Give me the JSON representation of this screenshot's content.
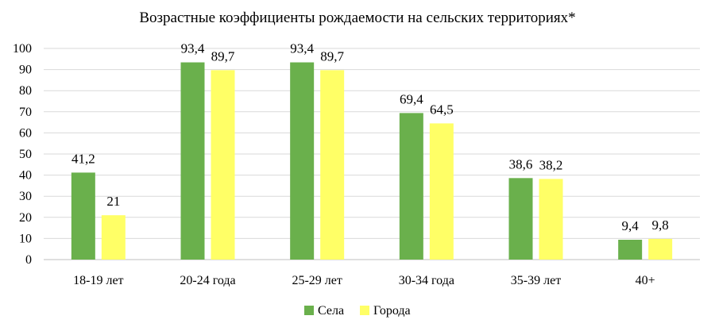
{
  "chart_data": {
    "type": "bar",
    "title": "Возрастные коэффициенты рождаемости на сельских территориях*",
    "categories": [
      "18-19 лет",
      "20-24 года",
      "25-29 лет",
      "30-34 года",
      "35-39 лет",
      "40+"
    ],
    "series": [
      {
        "name": "Села",
        "color": "#6ab04c",
        "values": [
          41.2,
          93.4,
          93.4,
          69.4,
          38.6,
          9.4
        ],
        "labels": [
          "41,2",
          "93,4",
          "93,4",
          "69,4",
          "38,6",
          "9,4"
        ]
      },
      {
        "name": "Города",
        "color": "#ffff66",
        "values": [
          21,
          89.7,
          89.7,
          64.5,
          38.2,
          9.8
        ],
        "labels": [
          "21",
          "89,7",
          "89,7",
          "64,5",
          "38,2",
          "9,8"
        ]
      }
    ],
    "ylim": [
      0,
      100
    ],
    "yticks": [
      "0",
      "10",
      "20",
      "30",
      "40",
      "50",
      "60",
      "70",
      "80",
      "90",
      "100"
    ],
    "grid": true,
    "legend_position": "bottom"
  }
}
